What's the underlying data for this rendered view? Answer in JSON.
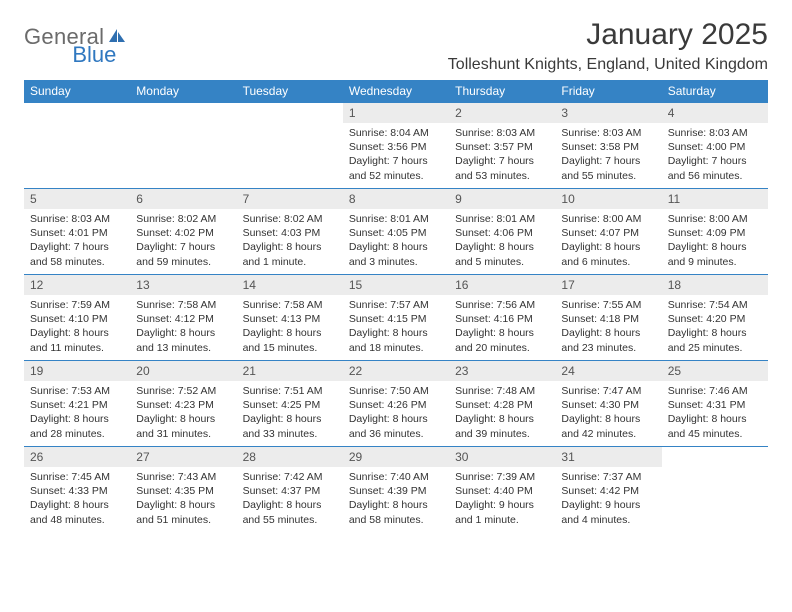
{
  "logo": {
    "text_general": "General",
    "text_blue": "Blue"
  },
  "title": "January 2025",
  "location": "Tolleshunt Knights, England, United Kingdom",
  "colors": {
    "header_bg": "#3583c5",
    "header_text": "#ffffff",
    "daynum_bg": "#ececec",
    "border": "#3583c5",
    "logo_gray": "#6b6b6b",
    "logo_blue": "#3078c0",
    "text": "#333333",
    "background": "#ffffff"
  },
  "weekdays": [
    "Sunday",
    "Monday",
    "Tuesday",
    "Wednesday",
    "Thursday",
    "Friday",
    "Saturday"
  ],
  "weeks": [
    [
      {
        "num": "",
        "sunrise": "",
        "sunset": "",
        "daylight": "",
        "empty": true
      },
      {
        "num": "",
        "sunrise": "",
        "sunset": "",
        "daylight": "",
        "empty": true
      },
      {
        "num": "",
        "sunrise": "",
        "sunset": "",
        "daylight": "",
        "empty": true
      },
      {
        "num": "1",
        "sunrise": "Sunrise: 8:04 AM",
        "sunset": "Sunset: 3:56 PM",
        "daylight": "Daylight: 7 hours and 52 minutes."
      },
      {
        "num": "2",
        "sunrise": "Sunrise: 8:03 AM",
        "sunset": "Sunset: 3:57 PM",
        "daylight": "Daylight: 7 hours and 53 minutes."
      },
      {
        "num": "3",
        "sunrise": "Sunrise: 8:03 AM",
        "sunset": "Sunset: 3:58 PM",
        "daylight": "Daylight: 7 hours and 55 minutes."
      },
      {
        "num": "4",
        "sunrise": "Sunrise: 8:03 AM",
        "sunset": "Sunset: 4:00 PM",
        "daylight": "Daylight: 7 hours and 56 minutes."
      }
    ],
    [
      {
        "num": "5",
        "sunrise": "Sunrise: 8:03 AM",
        "sunset": "Sunset: 4:01 PM",
        "daylight": "Daylight: 7 hours and 58 minutes."
      },
      {
        "num": "6",
        "sunrise": "Sunrise: 8:02 AM",
        "sunset": "Sunset: 4:02 PM",
        "daylight": "Daylight: 7 hours and 59 minutes."
      },
      {
        "num": "7",
        "sunrise": "Sunrise: 8:02 AM",
        "sunset": "Sunset: 4:03 PM",
        "daylight": "Daylight: 8 hours and 1 minute."
      },
      {
        "num": "8",
        "sunrise": "Sunrise: 8:01 AM",
        "sunset": "Sunset: 4:05 PM",
        "daylight": "Daylight: 8 hours and 3 minutes."
      },
      {
        "num": "9",
        "sunrise": "Sunrise: 8:01 AM",
        "sunset": "Sunset: 4:06 PM",
        "daylight": "Daylight: 8 hours and 5 minutes."
      },
      {
        "num": "10",
        "sunrise": "Sunrise: 8:00 AM",
        "sunset": "Sunset: 4:07 PM",
        "daylight": "Daylight: 8 hours and 6 minutes."
      },
      {
        "num": "11",
        "sunrise": "Sunrise: 8:00 AM",
        "sunset": "Sunset: 4:09 PM",
        "daylight": "Daylight: 8 hours and 9 minutes."
      }
    ],
    [
      {
        "num": "12",
        "sunrise": "Sunrise: 7:59 AM",
        "sunset": "Sunset: 4:10 PM",
        "daylight": "Daylight: 8 hours and 11 minutes."
      },
      {
        "num": "13",
        "sunrise": "Sunrise: 7:58 AM",
        "sunset": "Sunset: 4:12 PM",
        "daylight": "Daylight: 8 hours and 13 minutes."
      },
      {
        "num": "14",
        "sunrise": "Sunrise: 7:58 AM",
        "sunset": "Sunset: 4:13 PM",
        "daylight": "Daylight: 8 hours and 15 minutes."
      },
      {
        "num": "15",
        "sunrise": "Sunrise: 7:57 AM",
        "sunset": "Sunset: 4:15 PM",
        "daylight": "Daylight: 8 hours and 18 minutes."
      },
      {
        "num": "16",
        "sunrise": "Sunrise: 7:56 AM",
        "sunset": "Sunset: 4:16 PM",
        "daylight": "Daylight: 8 hours and 20 minutes."
      },
      {
        "num": "17",
        "sunrise": "Sunrise: 7:55 AM",
        "sunset": "Sunset: 4:18 PM",
        "daylight": "Daylight: 8 hours and 23 minutes."
      },
      {
        "num": "18",
        "sunrise": "Sunrise: 7:54 AM",
        "sunset": "Sunset: 4:20 PM",
        "daylight": "Daylight: 8 hours and 25 minutes."
      }
    ],
    [
      {
        "num": "19",
        "sunrise": "Sunrise: 7:53 AM",
        "sunset": "Sunset: 4:21 PM",
        "daylight": "Daylight: 8 hours and 28 minutes."
      },
      {
        "num": "20",
        "sunrise": "Sunrise: 7:52 AM",
        "sunset": "Sunset: 4:23 PM",
        "daylight": "Daylight: 8 hours and 31 minutes."
      },
      {
        "num": "21",
        "sunrise": "Sunrise: 7:51 AM",
        "sunset": "Sunset: 4:25 PM",
        "daylight": "Daylight: 8 hours and 33 minutes."
      },
      {
        "num": "22",
        "sunrise": "Sunrise: 7:50 AM",
        "sunset": "Sunset: 4:26 PM",
        "daylight": "Daylight: 8 hours and 36 minutes."
      },
      {
        "num": "23",
        "sunrise": "Sunrise: 7:48 AM",
        "sunset": "Sunset: 4:28 PM",
        "daylight": "Daylight: 8 hours and 39 minutes."
      },
      {
        "num": "24",
        "sunrise": "Sunrise: 7:47 AM",
        "sunset": "Sunset: 4:30 PM",
        "daylight": "Daylight: 8 hours and 42 minutes."
      },
      {
        "num": "25",
        "sunrise": "Sunrise: 7:46 AM",
        "sunset": "Sunset: 4:31 PM",
        "daylight": "Daylight: 8 hours and 45 minutes."
      }
    ],
    [
      {
        "num": "26",
        "sunrise": "Sunrise: 7:45 AM",
        "sunset": "Sunset: 4:33 PM",
        "daylight": "Daylight: 8 hours and 48 minutes."
      },
      {
        "num": "27",
        "sunrise": "Sunrise: 7:43 AM",
        "sunset": "Sunset: 4:35 PM",
        "daylight": "Daylight: 8 hours and 51 minutes."
      },
      {
        "num": "28",
        "sunrise": "Sunrise: 7:42 AM",
        "sunset": "Sunset: 4:37 PM",
        "daylight": "Daylight: 8 hours and 55 minutes."
      },
      {
        "num": "29",
        "sunrise": "Sunrise: 7:40 AM",
        "sunset": "Sunset: 4:39 PM",
        "daylight": "Daylight: 8 hours and 58 minutes."
      },
      {
        "num": "30",
        "sunrise": "Sunrise: 7:39 AM",
        "sunset": "Sunset: 4:40 PM",
        "daylight": "Daylight: 9 hours and 1 minute."
      },
      {
        "num": "31",
        "sunrise": "Sunrise: 7:37 AM",
        "sunset": "Sunset: 4:42 PM",
        "daylight": "Daylight: 9 hours and 4 minutes."
      },
      {
        "num": "",
        "sunrise": "",
        "sunset": "",
        "daylight": "",
        "empty": true
      }
    ]
  ]
}
